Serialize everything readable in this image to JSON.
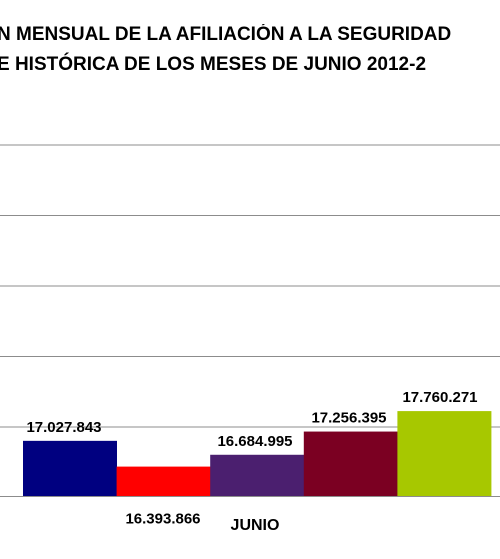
{
  "chart_data": {
    "type": "bar",
    "title_lines": [
      "N MENSUAL DE LA  AFILIACIÓN A LA SEGURIDAD",
      "E HISTÓRICA DE LOS MESES DE JUNIO 2012-2"
    ],
    "categories": [
      "JUNIO"
    ],
    "series": [
      {
        "value": 17027843,
        "label": "17.027.843",
        "color": "#000080"
      },
      {
        "value": 16393866,
        "label": "16.393.866",
        "color": "#ff0000"
      },
      {
        "value": 16684995,
        "label": "16.684.995",
        "color": "#4b1f6f"
      },
      {
        "value": 17256395,
        "label": "17.256.395",
        "color": "#7b0022"
      },
      {
        "value": 17760271,
        "label": "17.760.271",
        "color": "#a7c800"
      }
    ],
    "grid": true
  }
}
